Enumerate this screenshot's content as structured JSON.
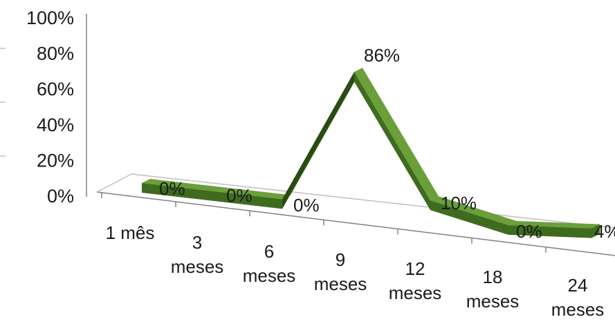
{
  "chart_data": {
    "type": "line",
    "style": "3d-ribbon",
    "title": "",
    "xlabel": "",
    "ylabel": "",
    "ylim": [
      0,
      100
    ],
    "yticks": [
      "0%",
      "20%",
      "40%",
      "60%",
      "80%",
      "100%"
    ],
    "categories": [
      [
        "1 mês"
      ],
      [
        "3",
        "meses"
      ],
      [
        "6",
        "meses"
      ],
      [
        "9",
        "meses"
      ],
      [
        "12",
        "meses"
      ],
      [
        "18",
        "meses"
      ],
      [
        "24",
        "meses"
      ]
    ],
    "series": [
      {
        "values": [
          0,
          0,
          0,
          86,
          10,
          0,
          4
        ],
        "labels": [
          "0%",
          "0%",
          "0%",
          "86%",
          "10%",
          "0%",
          "4%"
        ],
        "color_top": "#6a9f3a",
        "color_side": "#3f6b1f",
        "color_dark": "#2b4a14"
      }
    ],
    "grid": false,
    "legend": "none"
  }
}
